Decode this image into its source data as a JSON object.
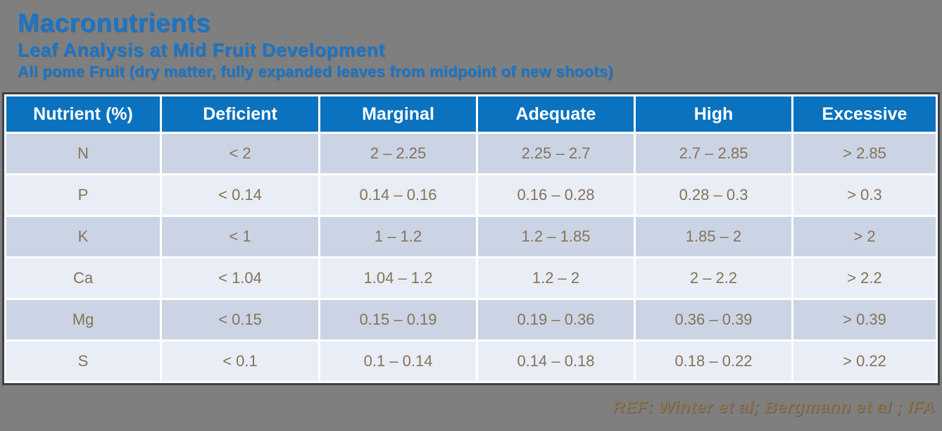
{
  "page": {
    "background_color": "#7F7F7F"
  },
  "header": {
    "title": "Macronutrients",
    "subtitle": "Leaf Analysis at Mid Fruit Development",
    "subtitle2": "All pome Fruit (dry matter, fully expanded leaves from midpoint of new shoots)",
    "accent_color": "#1976C8"
  },
  "table": {
    "header_bg": "#0A72BE",
    "header_text_color": "#FFFFFF",
    "row_color_dark": "#CBD4E4",
    "row_color_light": "#E9EDF5",
    "cell_text_color": "#85735A",
    "border_color": "#3E4149",
    "columns": [
      "Nutrient (%)",
      "Deficient",
      "Marginal",
      "Adequate",
      "High",
      "Excessive"
    ],
    "rows": [
      [
        "N",
        "< 2",
        "2 – 2.25",
        "2.25 – 2.7",
        "2.7 – 2.85",
        "> 2.85"
      ],
      [
        "P",
        "< 0.14",
        "0.14 – 0.16",
        "0.16 – 0.28",
        "0.28 – 0.3",
        "> 0.3"
      ],
      [
        "K",
        "< 1",
        "1 – 1.2",
        "1.2 – 1.85",
        "1.85 – 2",
        "> 2"
      ],
      [
        "Ca",
        "< 1.04",
        "1.04 – 1.2",
        "1.2 – 2",
        "2 – 2.2",
        "> 2.2"
      ],
      [
        "Mg",
        "< 0.15",
        "0.15 – 0.19",
        "0.19 – 0.36",
        "0.36 – 0.39",
        "> 0.39"
      ],
      [
        "S",
        "< 0.1",
        "0.1 – 0.14",
        "0.14 – 0.18",
        "0.18 – 0.22",
        "> 0.22"
      ]
    ]
  },
  "footer": {
    "reference": "REF: Winter et al; Bergmann et al ; IFA"
  }
}
